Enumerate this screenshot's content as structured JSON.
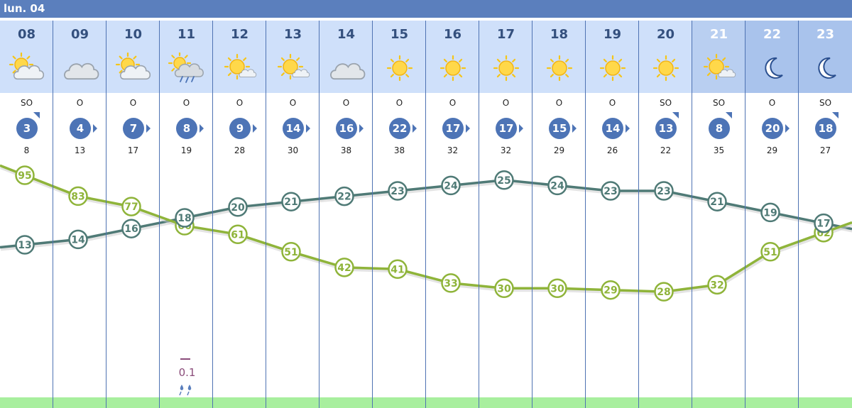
{
  "day_label": "lun. 04",
  "hours": [
    "08",
    "09",
    "10",
    "11",
    "12",
    "13",
    "14",
    "15",
    "16",
    "17",
    "18",
    "19",
    "20",
    "21",
    "22",
    "23"
  ],
  "icons": [
    "sun-cloud-icon",
    "cloud-icon",
    "sun-cloud-icon",
    "sun-cloud-rain-icon",
    "sun-small-cloud-icon",
    "sun-small-cloud-icon",
    "cloud-icon",
    "sun-icon",
    "sun-icon",
    "sun-icon",
    "sun-icon",
    "sun-icon",
    "sun-icon",
    "sun-small-cloud-icon",
    "moon-icon",
    "moon-icon"
  ],
  "wind_dir": [
    "SO",
    "O",
    "O",
    "O",
    "O",
    "O",
    "O",
    "O",
    "O",
    "O",
    "O",
    "O",
    "SO",
    "SO",
    "O",
    "SO"
  ],
  "wind_speed": [
    "3",
    "4",
    "7",
    "8",
    "9",
    "14",
    "16",
    "22",
    "17",
    "17",
    "15",
    "14",
    "13",
    "8",
    "20",
    "18"
  ],
  "gusts": [
    "8",
    "13",
    "17",
    "19",
    "28",
    "30",
    "38",
    "38",
    "32",
    "32",
    "29",
    "26",
    "22",
    "35",
    "29",
    "27"
  ],
  "precip": {
    "value": "0.1",
    "icon": "rain-drops-icon"
  },
  "colors": {
    "header": "#5b7fbd",
    "temp_line": "#4f7a76",
    "humidity_line": "#8fb43a",
    "wind_badge": "#4d74b6",
    "precip": "#8a4c7a",
    "ground": "#a8ef9e"
  },
  "chart_data": {
    "type": "line",
    "x": [
      "08",
      "09",
      "10",
      "11",
      "12",
      "13",
      "14",
      "15",
      "16",
      "17",
      "18",
      "19",
      "20",
      "21",
      "22",
      "23"
    ],
    "series": [
      {
        "values": [
          13,
          14,
          16,
          18,
          20,
          21,
          22,
          23,
          24,
          25,
          24,
          23,
          23,
          21,
          19,
          17
        ]
      },
      {
        "values": [
          95,
          83,
          77,
          66,
          61,
          51,
          42,
          41,
          33,
          30,
          30,
          29,
          28,
          32,
          51,
          62
        ]
      }
    ]
  }
}
